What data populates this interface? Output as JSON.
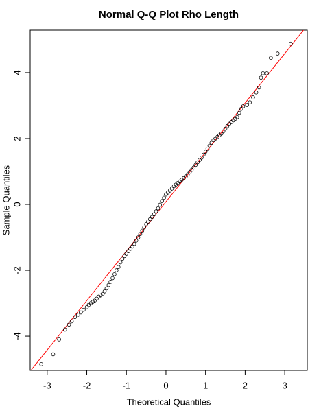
{
  "chart_data": {
    "type": "scatter",
    "title": "Normal Q-Q Plot Rho Length",
    "x_label": "Theoretical Quantiles",
    "y_label": "Sample Quantiles",
    "xlim": [
      -3.43,
      3.57
    ],
    "ylim": [
      -5.04,
      5.29
    ],
    "xticks": [
      -3,
      -2,
      -1,
      0,
      1,
      2,
      3
    ],
    "yticks": [
      -4,
      -2,
      0,
      2,
      4
    ],
    "point_color": "#000000",
    "line_color": "#ff0000",
    "reference_line": {
      "intercept": 0.08,
      "slope": 1.5
    },
    "x": [
      -3.15,
      -2.85,
      -2.7,
      -2.55,
      -2.45,
      -2.38,
      -2.3,
      -2.22,
      -2.15,
      -2.08,
      -2.0,
      -1.95,
      -1.9,
      -1.85,
      -1.8,
      -1.75,
      -1.7,
      -1.65,
      -1.6,
      -1.55,
      -1.5,
      -1.45,
      -1.4,
      -1.35,
      -1.3,
      -1.25,
      -1.2,
      -1.15,
      -1.1,
      -1.05,
      -1.0,
      -0.95,
      -0.9,
      -0.85,
      -0.8,
      -0.75,
      -0.7,
      -0.65,
      -0.6,
      -0.55,
      -0.5,
      -0.45,
      -0.4,
      -0.35,
      -0.3,
      -0.25,
      -0.2,
      -0.15,
      -0.1,
      -0.05,
      0,
      0.05,
      0.1,
      0.15,
      0.2,
      0.25,
      0.3,
      0.35,
      0.4,
      0.45,
      0.5,
      0.55,
      0.6,
      0.65,
      0.7,
      0.75,
      0.8,
      0.85,
      0.9,
      0.95,
      1.0,
      1.05,
      1.1,
      1.15,
      1.2,
      1.25,
      1.3,
      1.35,
      1.4,
      1.45,
      1.5,
      1.55,
      1.6,
      1.65,
      1.7,
      1.75,
      1.8,
      1.85,
      1.9,
      1.95,
      2.05,
      2.12,
      2.2,
      2.28,
      2.35,
      2.4,
      2.45,
      2.55,
      2.65,
      2.82,
      3.15
    ],
    "values": [
      -4.85,
      -4.55,
      -4.1,
      -3.8,
      -3.65,
      -3.55,
      -3.42,
      -3.35,
      -3.28,
      -3.2,
      -3.12,
      -3.05,
      -3.0,
      -2.96,
      -2.92,
      -2.86,
      -2.8,
      -2.76,
      -2.72,
      -2.64,
      -2.55,
      -2.45,
      -2.35,
      -2.24,
      -2.12,
      -2.0,
      -1.9,
      -1.76,
      -1.65,
      -1.57,
      -1.5,
      -1.42,
      -1.35,
      -1.28,
      -1.2,
      -1.1,
      -1.0,
      -0.9,
      -0.8,
      -0.7,
      -0.6,
      -0.52,
      -0.45,
      -0.38,
      -0.3,
      -0.21,
      -0.12,
      -0.01,
      0.1,
      0.2,
      0.3,
      0.36,
      0.42,
      0.48,
      0.55,
      0.6,
      0.65,
      0.7,
      0.75,
      0.8,
      0.85,
      0.91,
      0.98,
      1.05,
      1.12,
      1.2,
      1.28,
      1.35,
      1.42,
      1.51,
      1.6,
      1.69,
      1.78,
      1.87,
      1.95,
      2.0,
      2.05,
      2.1,
      2.15,
      2.22,
      2.3,
      2.38,
      2.45,
      2.5,
      2.55,
      2.6,
      2.65,
      2.78,
      2.9,
      2.98,
      3.02,
      3.1,
      3.25,
      3.4,
      3.55,
      3.85,
      3.98,
      3.98,
      4.45,
      4.58,
      4.88
    ]
  }
}
